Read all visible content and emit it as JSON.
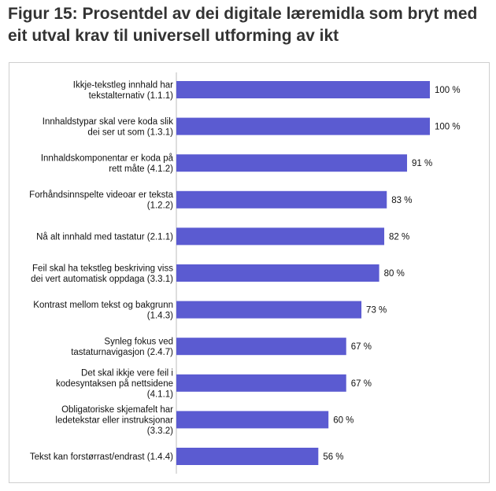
{
  "title": "Figur 15: Prosentdel av dei digitale læremidla som bryt med eit utval krav til universell utforming av ikt",
  "colors": {
    "bar": "#5b5bd1"
  },
  "chart_data": {
    "type": "bar",
    "orientation": "horizontal",
    "categories": [
      [
        "Ikkje-tekstleg innhald har",
        "tekstalternativ (1.1.1)"
      ],
      [
        "Innhaldstypar skal vere koda slik",
        "dei ser ut som (1.3.1)"
      ],
      [
        "Innhaldskomponentar er koda på",
        "rett måte (4.1.2)"
      ],
      [
        "Forhåndsinnspelte videoar er teksta",
        "(1.2.2)"
      ],
      [
        "Nå alt innhald med tastatur (2.1.1)"
      ],
      [
        "Feil skal ha tekstleg beskriving viss",
        "dei vert automatisk oppdaga (3.3.1)"
      ],
      [
        "Kontrast mellom tekst og bakgrunn",
        "(1.4.3)"
      ],
      [
        "Synleg fokus ved",
        "tastaturnavigasjon (2.4.7)"
      ],
      [
        "Det skal ikkje vere feil i",
        "kodesyntaksen på nettsidene",
        "(4.1.1)"
      ],
      [
        "Obligatoriske skjemafelt har",
        "ledetekstar eller instruksjonar",
        "(3.3.2)"
      ],
      [
        "Tekst kan forstørrast/endrast (1.4.4)"
      ]
    ],
    "values": [
      100,
      100,
      91,
      83,
      82,
      80,
      73,
      67,
      67,
      60,
      56
    ],
    "value_labels": [
      "100 %",
      "100 %",
      "91 %",
      "83 %",
      "82 %",
      "80 %",
      "73 %",
      "67 %",
      "67 %",
      "60 %",
      "56 %"
    ],
    "xlim": [
      0,
      100
    ],
    "grid": false,
    "legend": "none"
  }
}
